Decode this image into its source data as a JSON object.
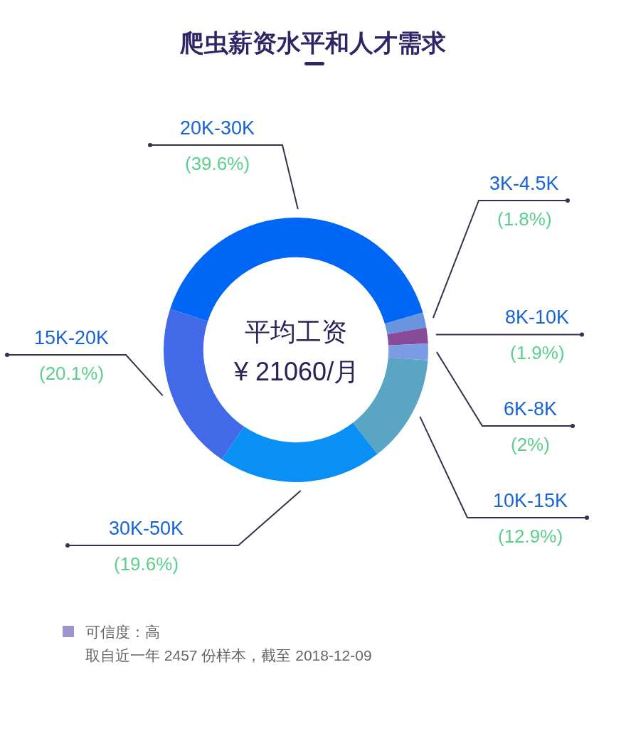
{
  "chart_data": {
    "type": "donut",
    "title": "爬虫薪资水平和人才需求",
    "categories": [
      "20K-30K",
      "3K-4.5K",
      "8K-10K",
      "6K-8K",
      "10K-15K",
      "30K-50K",
      "15K-20K"
    ],
    "values": [
      39.6,
      1.8,
      1.9,
      2,
      12.9,
      19.6,
      20.1
    ],
    "colors": [
      "#0066f5",
      "#6a93e0",
      "#8a4a9a",
      "#7c9ce6",
      "#5aa5c3",
      "#0a8ff5",
      "#4169e8"
    ],
    "value_labels": [
      "(39.6%)",
      "(1.8%)",
      "(1.9%)",
      "(2%)",
      "(12.9%)",
      "(19.6%)",
      "(20.1%)"
    ],
    "annotations": [
      "平均工资",
      "¥ 21060/月",
      "可信度：高",
      "取自近一年 2457 份样本，截至 2018-12-09"
    ]
  }
}
